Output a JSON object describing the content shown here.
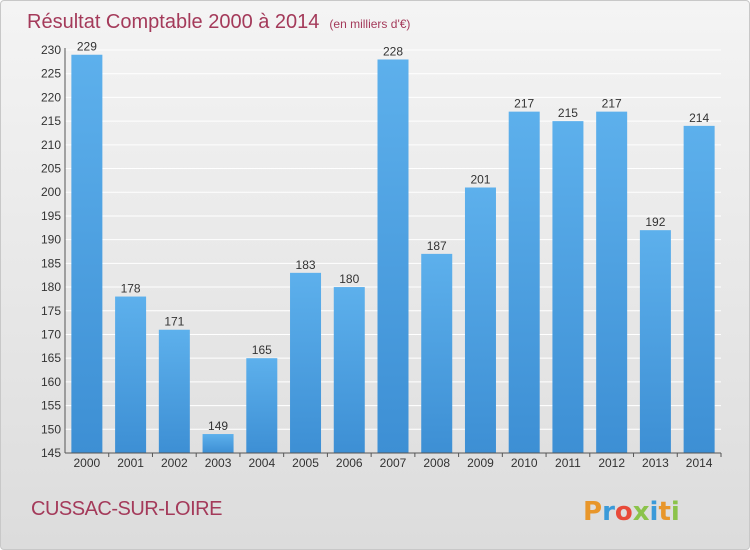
{
  "chart_data": {
    "type": "bar",
    "title": "Résultat Comptable 2000 à 2014",
    "subtitle": "(en milliers d'€)",
    "categories": [
      "2000",
      "2001",
      "2002",
      "2003",
      "2004",
      "2005",
      "2006",
      "2007",
      "2008",
      "2009",
      "2010",
      "2011",
      "2012",
      "2013",
      "2014"
    ],
    "values": [
      229,
      178,
      171,
      149,
      165,
      183,
      180,
      228,
      187,
      201,
      217,
      215,
      217,
      192,
      214
    ],
    "ylim": [
      145,
      230
    ],
    "yticks": [
      145,
      150,
      155,
      160,
      165,
      170,
      175,
      180,
      185,
      190,
      195,
      200,
      205,
      210,
      215,
      220,
      225,
      230
    ],
    "grid": true,
    "bar_color": "#3d8fd4",
    "bar_color_light": "#5db0ec",
    "grid_color": "#ffffff",
    "title_color": "#a43a5a"
  },
  "footer": {
    "commune": "CUSSAC-SUR-LOIRE",
    "logo_text": "Proxiti",
    "logo_colors": [
      "#e8962a",
      "#3a9ad9",
      "#e84b3a",
      "#8bc34a",
      "#3a9ad9",
      "#e8962a",
      "#8bc34a"
    ]
  }
}
